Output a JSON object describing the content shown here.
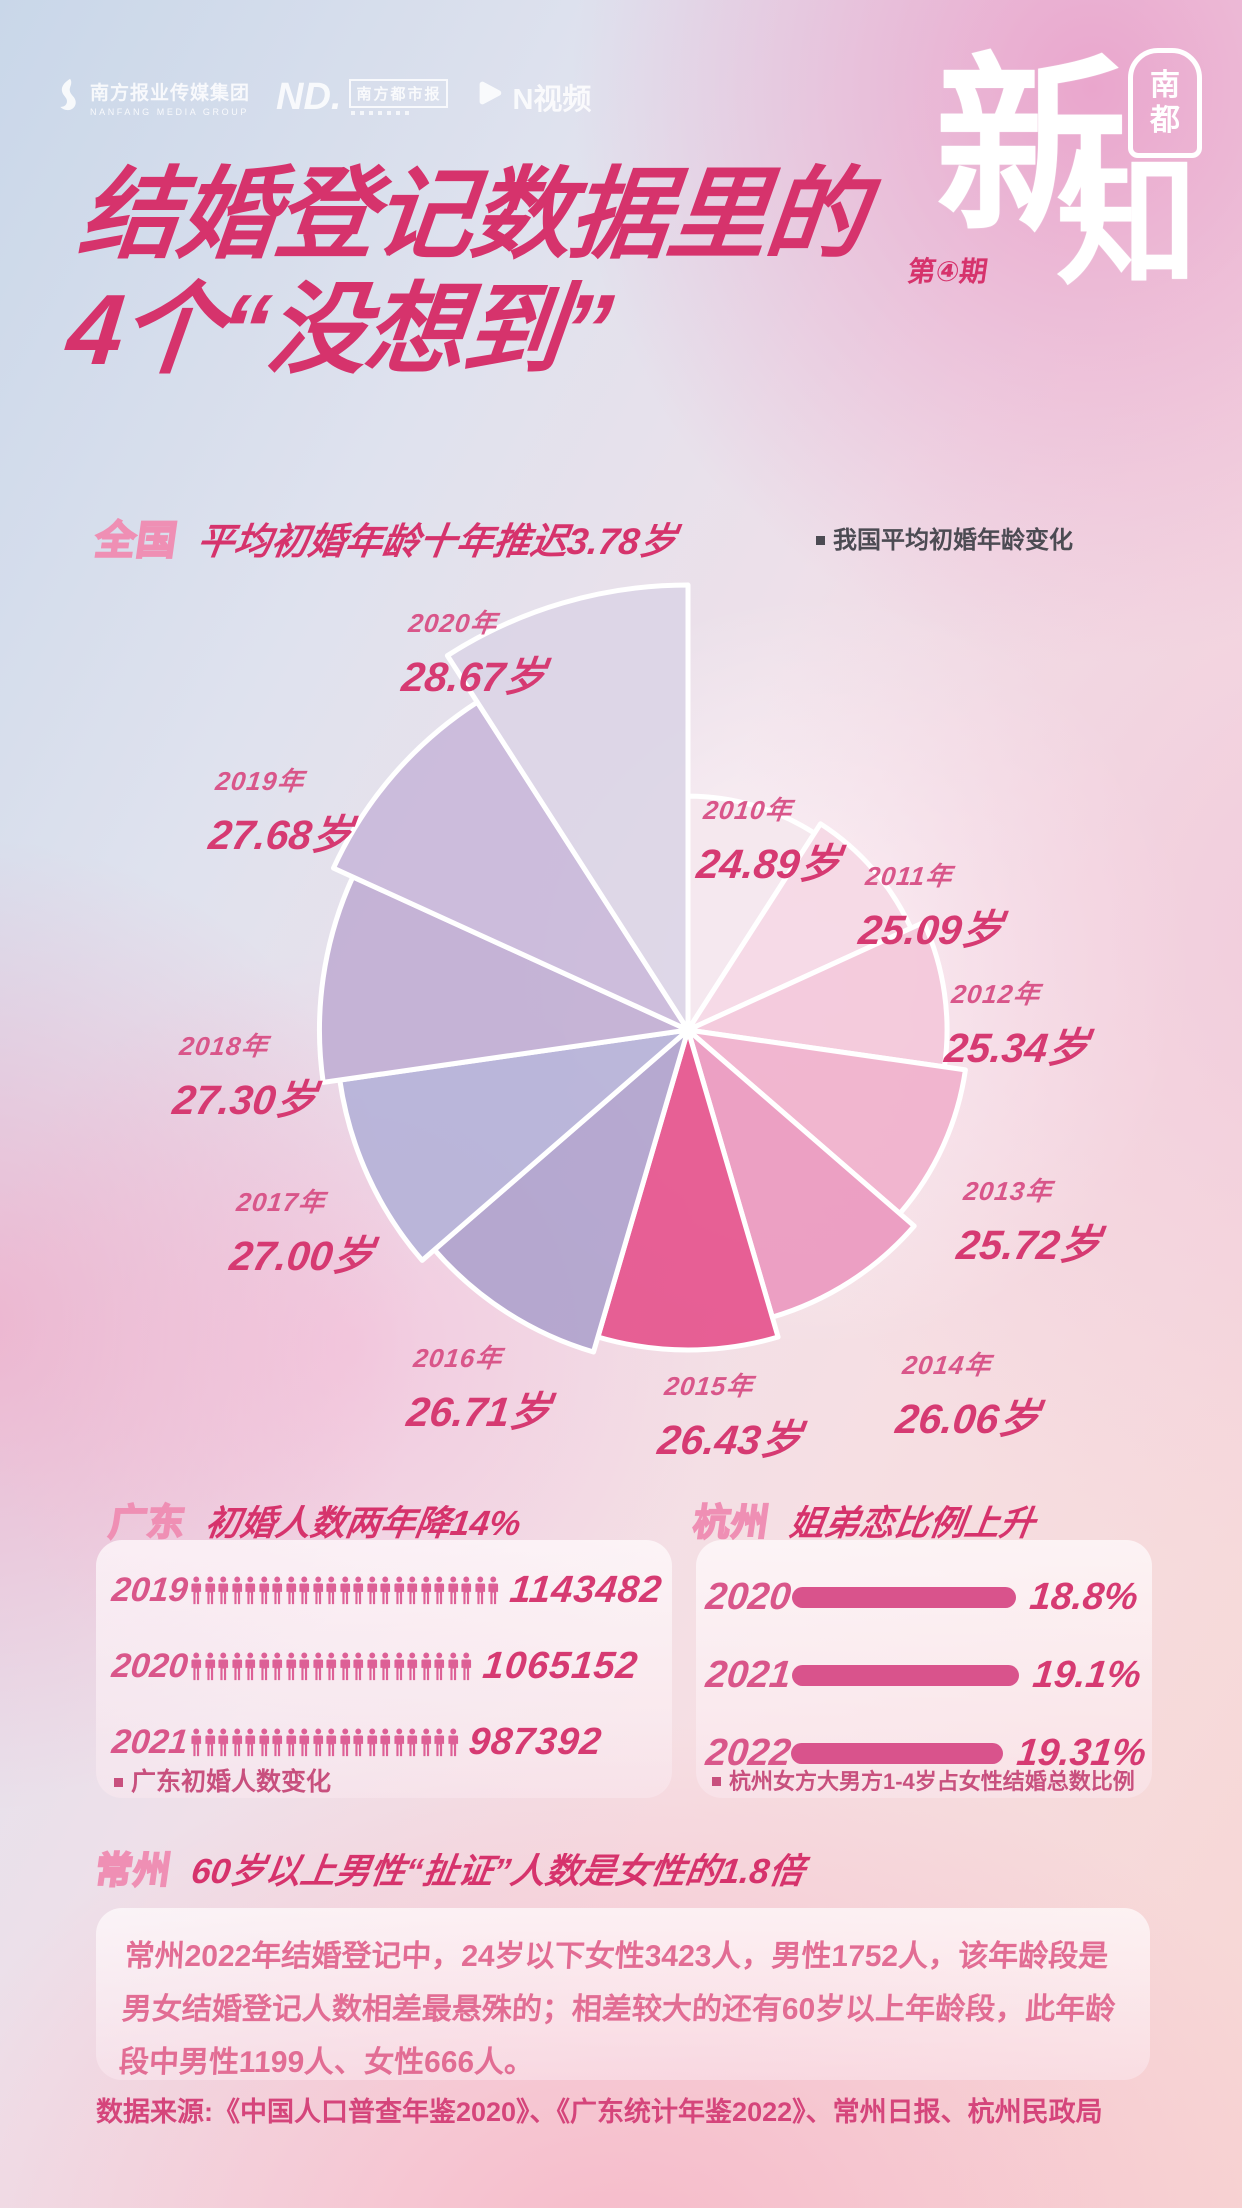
{
  "brand": {
    "media_group": {
      "name": "南方报业传媒集团",
      "name_en": "NANFANG MEDIA GROUP"
    },
    "nd_logo": {
      "abbr": "ND.",
      "name": "南方都市报"
    },
    "nvideo": {
      "name": "N视频"
    },
    "masthead": {
      "char1": "新",
      "char2": "知",
      "badge_top": "南",
      "badge_bottom": "都"
    },
    "issue": "第④期"
  },
  "title": {
    "line1": "结婚登记数据里的",
    "line2": "4个“没想到”"
  },
  "sections": {
    "national": {
      "region": "全国",
      "headline": "平均初婚年龄十年推迟3.78岁",
      "note": "我国平均初婚年龄变化"
    },
    "guangdong": {
      "region": "广东",
      "headline": "初婚人数两年降14%",
      "note": "广东初婚人数变化",
      "rows": [
        {
          "year": "2019",
          "icons": 23,
          "value": "1143482"
        },
        {
          "year": "2020",
          "icons": 21,
          "value": "1065152"
        },
        {
          "year": "2021",
          "icons": 20,
          "value": "987392"
        }
      ]
    },
    "hangzhou": {
      "region": "杭州",
      "headline": "姐弟恋比例上升",
      "note": "杭州女方大男方1-4岁占女性结婚总数比例",
      "rows": [
        {
          "year": "2020",
          "value": 18.8,
          "label": "18.8%"
        },
        {
          "year": "2021",
          "value": 19.1,
          "label": "19.1%"
        },
        {
          "year": "2022",
          "value": 19.31,
          "label": "19.31%"
        }
      ]
    },
    "changzhou": {
      "region": "常州",
      "headline": "60岁以上男性“扯证”人数是女性的1.8倍",
      "body": "常州2022年结婚登记中，24岁以下女性3423人，男性1752人，该年龄段是男女结婚登记人数相差最悬殊的；相差较大的还有60岁以上年龄段，此年龄段中男性1199人、女性666人。"
    }
  },
  "source": "数据来源:《中国人口普查年鉴2020》、《广东统计年鉴2022》、常州日报、杭州民政局",
  "chart_data": {
    "type": "pie",
    "variant": "nightingale-rose",
    "title": "我国平均初婚年龄变化",
    "unit": "岁",
    "categories": [
      "2010年",
      "2011年",
      "2012年",
      "2013年",
      "2014年",
      "2015年",
      "2016年",
      "2017年",
      "2018年",
      "2019年",
      "2020年"
    ],
    "values": [
      24.89,
      25.09,
      25.34,
      25.72,
      26.06,
      26.43,
      26.71,
      27.0,
      27.3,
      27.68,
      28.67
    ],
    "value_labels": [
      "24.89岁",
      "25.09岁",
      "25.34岁",
      "25.72岁",
      "26.06岁",
      "26.43岁",
      "26.71岁",
      "27.00岁",
      "27.30岁",
      "27.68岁",
      "28.67岁"
    ],
    "highlight_index": 5,
    "start_angle": "12 o'clock, clockwise",
    "slice_colors": [
      "#f4e7ee",
      "#f5d8e5",
      "#f3c8da",
      "#f0b2cc",
      "#eb9abf",
      "#e5558e",
      "#b0a4cd",
      "#b6b3d8",
      "#c2afd4",
      "#c9b9da",
      "#dbd5e6"
    ]
  },
  "colors": {
    "accent": "#d6336c",
    "label_pink": "#d9568a",
    "value_pink": "#d63a72",
    "outline_pink": "#ef8fb4",
    "pictogram": "#dd6096",
    "bar": "#d9538c",
    "note_dark": "#4c4b53",
    "note_pink": "#c8507e",
    "body_pink": "#e26d94",
    "source_pink": "#d5457b"
  }
}
